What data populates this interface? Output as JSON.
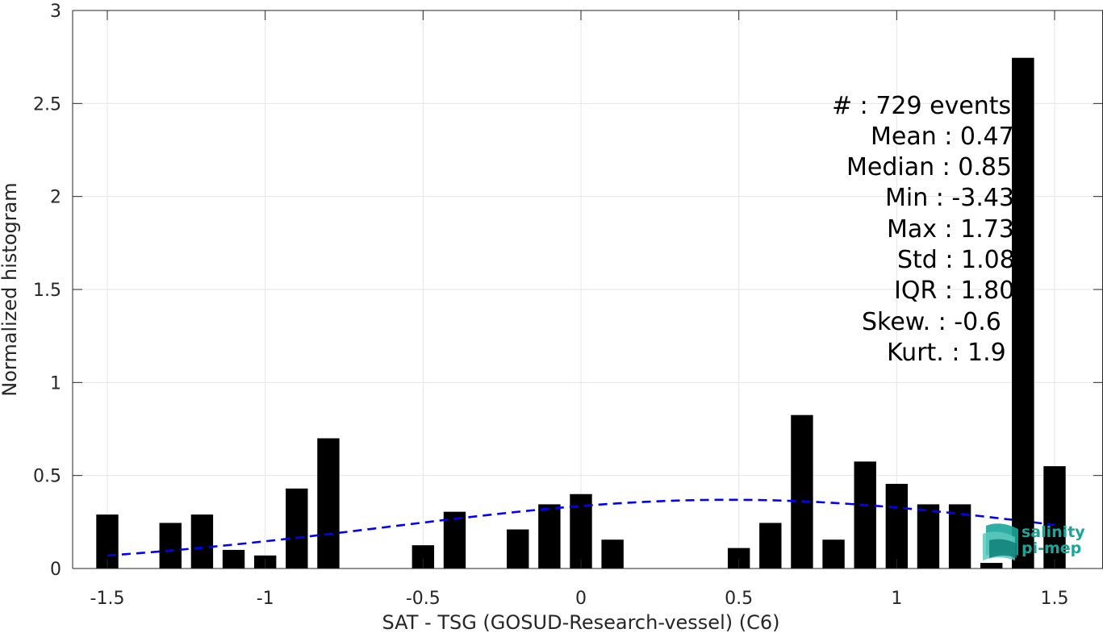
{
  "chart_data": {
    "type": "bar",
    "xlabel": "SAT - TSG (GOSUD-Research-vessel) (C6)",
    "ylabel": "Normalized histogram",
    "xlim": [
      -1.55,
      1.55
    ],
    "ylim": [
      0,
      3
    ],
    "xticks": [
      -1.5,
      -1,
      -0.5,
      0,
      0.5,
      1,
      1.5
    ],
    "xtick_labels": [
      "-1.5",
      "-1",
      "-0.5",
      "0",
      "0.5",
      "1",
      "1.5"
    ],
    "yticks": [
      0,
      0.5,
      1,
      1.5,
      2,
      2.5,
      3
    ],
    "ytick_labels": [
      "0",
      "0.5",
      "1",
      "1.5",
      "2",
      "2.5",
      "3"
    ],
    "grid": true,
    "bin_width": 0.1,
    "bins": [
      {
        "x": -1.5,
        "y": 0.29
      },
      {
        "x": -1.3,
        "y": 0.245
      },
      {
        "x": -1.2,
        "y": 0.29
      },
      {
        "x": -1.1,
        "y": 0.1
      },
      {
        "x": -1.0,
        "y": 0.07
      },
      {
        "x": -0.9,
        "y": 0.43
      },
      {
        "x": -0.8,
        "y": 0.7
      },
      {
        "x": -0.5,
        "y": 0.125
      },
      {
        "x": -0.4,
        "y": 0.305
      },
      {
        "x": -0.2,
        "y": 0.21
      },
      {
        "x": -0.1,
        "y": 0.345
      },
      {
        "x": 0.0,
        "y": 0.4
      },
      {
        "x": 0.1,
        "y": 0.155
      },
      {
        "x": 0.5,
        "y": 0.11
      },
      {
        "x": 0.6,
        "y": 0.245
      },
      {
        "x": 0.7,
        "y": 0.825
      },
      {
        "x": 0.8,
        "y": 0.155
      },
      {
        "x": 0.9,
        "y": 0.575
      },
      {
        "x": 1.0,
        "y": 0.455
      },
      {
        "x": 1.1,
        "y": 0.345
      },
      {
        "x": 1.2,
        "y": 0.345
      },
      {
        "x": 1.3,
        "y": 0.03
      },
      {
        "x": 1.4,
        "y": 2.745
      },
      {
        "x": 1.5,
        "y": 0.55
      }
    ],
    "fit_curve": {
      "type": "gaussian",
      "mean": 0.47,
      "std": 1.08,
      "x_range": [
        -1.5,
        1.5
      ],
      "color": "#0000ff",
      "style": "dashed"
    },
    "bar_color": "#000000",
    "stats": [
      "#  : 729 events",
      "Mean : 0.47",
      "Median : 0.85",
      "Min : -3.43",
      "Max : 1.73",
      "Std : 1.08",
      "IQR : 1.80",
      "Skew. : -0.6",
      "Kurt. : 1.9"
    ]
  },
  "logo": {
    "line1": "salinity",
    "line2": "pi-mep"
  }
}
